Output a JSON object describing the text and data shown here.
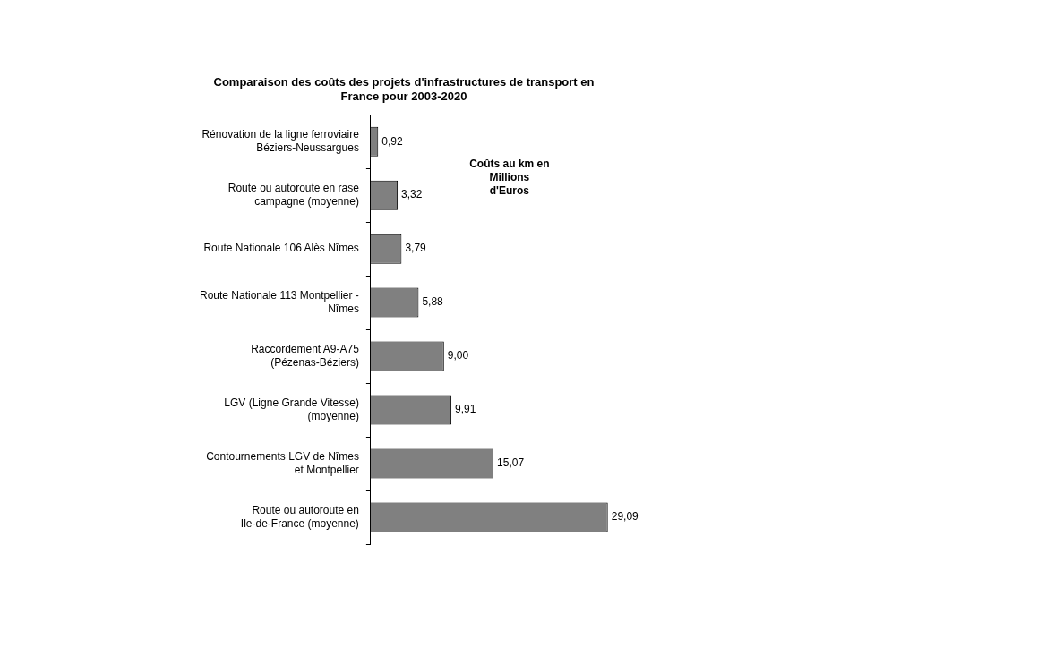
{
  "chart_data": {
    "type": "bar",
    "orientation": "horizontal",
    "title": "Comparaison des coûts des projets d'infrastructures de transport en France pour 2003-2020",
    "categories": [
      "Rénovation de la ligne ferroviaire Béziers-Neussargues",
      "Route ou autoroute en rase campagne (moyenne)",
      "Route Nationale 106 Alès Nîmes",
      "Route Nationale 113 Montpellier - Nîmes",
      "Raccordement A9-A75 (Pézenas-Béziers)",
      "LGV (Ligne Grande Vitesse) (moyenne)",
      "Contournements LGV de Nîmes et Montpellier",
      "Route ou autoroute en Ile-de-France (moyenne)"
    ],
    "values": [
      0.92,
      3.32,
      3.79,
      5.88,
      9.0,
      9.91,
      15.07,
      29.09
    ],
    "value_labels": [
      "0,92",
      "3,32",
      "3,79",
      "5,88",
      "9,00",
      "9,91",
      "15,07",
      "29,09"
    ],
    "color": "#808080",
    "annotations": [
      "Coûts au km en Millions d'Euros"
    ],
    "tick_labels": "y",
    "legend": false
  }
}
